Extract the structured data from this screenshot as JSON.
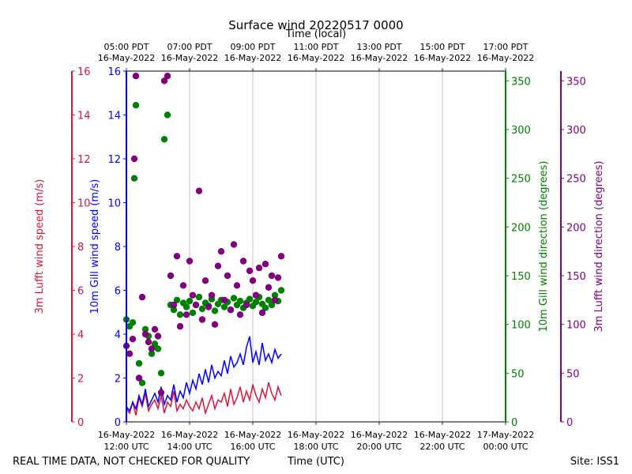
{
  "chart_data": {
    "type": "line",
    "title": "Surface wind 20220517 0000",
    "top_axis_label": "Time (local)",
    "xlabel": "Time (UTC)",
    "footer_left": "REAL TIME DATA, NOT CHECKED FOR QUALITY",
    "footer_right": "Site: ISS1",
    "x_range_hours_utc": [
      12,
      24
    ],
    "x_ticks_utc": [
      {
        "hour": 12,
        "line1": "16-May-2022",
        "line2": "12:00 UTC"
      },
      {
        "hour": 14,
        "line1": "16-May-2022",
        "line2": "14:00 UTC"
      },
      {
        "hour": 16,
        "line1": "16-May-2022",
        "line2": "16:00 UTC"
      },
      {
        "hour": 18,
        "line1": "16-May-2022",
        "line2": "18:00 UTC"
      },
      {
        "hour": 20,
        "line1": "16-May-2022",
        "line2": "20:00 UTC"
      },
      {
        "hour": 22,
        "line1": "16-May-2022",
        "line2": "22:00 UTC"
      },
      {
        "hour": 24,
        "line1": "17-May-2022",
        "line2": "00:00 UTC"
      }
    ],
    "x_ticks_local": [
      {
        "hour": 12,
        "line1": "05:00 PDT",
        "line2": "16-May-2022"
      },
      {
        "hour": 14,
        "line1": "07:00 PDT",
        "line2": "16-May-2022"
      },
      {
        "hour": 16,
        "line1": "09:00 PDT",
        "line2": "16-May-2022"
      },
      {
        "hour": 18,
        "line1": "11:00 PDT",
        "line2": "16-May-2022"
      },
      {
        "hour": 20,
        "line1": "13:00 PDT",
        "line2": "16-May-2022"
      },
      {
        "hour": 22,
        "line1": "15:00 PDT",
        "line2": "16-May-2022"
      },
      {
        "hour": 24,
        "line1": "17:00 PDT",
        "line2": "16-May-2022"
      }
    ],
    "axes": {
      "lufft_speed": {
        "label": "3m Lufft wind speed (m/s)",
        "ylim": [
          0,
          16
        ],
        "ticks": [
          0,
          2,
          4,
          6,
          8,
          10,
          12,
          14,
          16
        ],
        "color": "#dc143c"
      },
      "gill_speed": {
        "label": "10m Gill wind speed (m/s)",
        "ylim": [
          0,
          16
        ],
        "ticks": [
          0,
          2,
          4,
          6,
          8,
          10,
          12,
          14,
          16
        ],
        "color": "#0000ff"
      },
      "gill_dir": {
        "label": "10m Gill wind direction (degrees)",
        "ylim": [
          0,
          360
        ],
        "ticks": [
          0,
          50,
          100,
          150,
          200,
          250,
          300,
          350
        ],
        "color": "#008000"
      },
      "lufft_dir": {
        "label": "3m Lufft wind direction (degrees)",
        "ylim": [
          0,
          360
        ],
        "ticks": [
          0,
          50,
          100,
          150,
          200,
          250,
          300,
          350
        ],
        "color": "#800080"
      }
    },
    "series": [
      {
        "name": "3m Lufft wind speed",
        "kind": "line",
        "axis": "lufft_speed",
        "color": "#dc143c",
        "x": [
          12.0,
          12.1,
          12.2,
          12.3,
          12.4,
          12.5,
          12.6,
          12.7,
          12.8,
          12.9,
          13.0,
          13.1,
          13.2,
          13.3,
          13.4,
          13.5,
          13.6,
          13.7,
          13.8,
          13.9,
          14.0,
          14.1,
          14.2,
          14.3,
          14.4,
          14.5,
          14.6,
          14.7,
          14.8,
          14.9,
          15.0,
          15.1,
          15.2,
          15.3,
          15.4,
          15.5,
          15.6,
          15.7,
          15.8,
          15.9,
          16.0,
          16.1,
          16.2,
          16.3,
          16.4,
          16.5,
          16.6,
          16.7,
          16.8,
          16.9
        ],
        "values": [
          0.6,
          0.4,
          0.9,
          0.3,
          1.1,
          0.7,
          1.3,
          0.5,
          0.8,
          1.0,
          0.6,
          1.2,
          0.4,
          0.9,
          0.7,
          1.4,
          0.5,
          0.8,
          0.6,
          1.0,
          0.7,
          0.5,
          0.9,
          0.6,
          1.1,
          0.4,
          0.8,
          1.2,
          0.6,
          1.0,
          0.9,
          1.3,
          0.7,
          1.5,
          0.8,
          1.1,
          1.6,
          0.9,
          1.4,
          1.0,
          1.7,
          1.2,
          0.9,
          1.5,
          1.1,
          1.8,
          1.3,
          1.0,
          1.6,
          1.2
        ]
      },
      {
        "name": "10m Gill wind speed",
        "kind": "line",
        "axis": "gill_speed",
        "color": "#0000ff",
        "x": [
          12.0,
          12.1,
          12.2,
          12.3,
          12.4,
          12.5,
          12.6,
          12.7,
          12.8,
          12.9,
          13.0,
          13.1,
          13.2,
          13.3,
          13.4,
          13.5,
          13.6,
          13.7,
          13.8,
          13.9,
          14.0,
          14.1,
          14.2,
          14.3,
          14.4,
          14.5,
          14.6,
          14.7,
          14.8,
          14.9,
          15.0,
          15.1,
          15.2,
          15.3,
          15.4,
          15.5,
          15.6,
          15.7,
          15.8,
          15.9,
          16.0,
          16.1,
          16.2,
          16.3,
          16.4,
          16.5,
          16.6,
          16.7,
          16.8,
          16.9
        ],
        "values": [
          0.7,
          0.5,
          0.9,
          0.6,
          1.2,
          0.8,
          1.5,
          0.7,
          1.0,
          1.3,
          0.9,
          1.6,
          0.8,
          1.2,
          1.0,
          1.7,
          0.9,
          1.4,
          1.1,
          1.8,
          1.3,
          1.9,
          1.5,
          2.2,
          1.7,
          2.4,
          1.8,
          2.6,
          2.0,
          2.3,
          2.1,
          2.8,
          2.2,
          3.0,
          2.5,
          2.7,
          3.1,
          2.6,
          3.4,
          3.9,
          2.7,
          3.2,
          2.6,
          3.6,
          2.8,
          3.1,
          2.7,
          3.3,
          2.9,
          3.1
        ]
      },
      {
        "name": "10m Gill wind direction",
        "kind": "scatter",
        "axis": "gill_dir",
        "color": "#008000",
        "x": [
          12.0,
          12.1,
          12.2,
          12.25,
          12.3,
          12.4,
          12.5,
          12.6,
          12.7,
          12.8,
          12.9,
          13.0,
          13.1,
          13.2,
          13.3,
          13.4,
          13.5,
          13.6,
          13.7,
          13.8,
          13.9,
          14.0,
          14.1,
          14.2,
          14.3,
          14.4,
          14.5,
          14.6,
          14.7,
          14.8,
          14.9,
          15.0,
          15.1,
          15.2,
          15.3,
          15.4,
          15.5,
          15.6,
          15.7,
          15.8,
          15.9,
          16.0,
          16.1,
          16.2,
          16.3,
          16.4,
          16.5,
          16.6,
          16.7,
          16.8,
          16.9
        ],
        "values": [
          105,
          98,
          102,
          250,
          325,
          60,
          40,
          95,
          88,
          70,
          80,
          75,
          50,
          290,
          315,
          120,
          115,
          125,
          110,
          122,
          118,
          124,
          112,
          120,
          128,
          116,
          122,
          119,
          126,
          114,
          121,
          125,
          118,
          123,
          115,
          127,
          120,
          124,
          117,
          122,
          126,
          119,
          123,
          128,
          121,
          117,
          125,
          120,
          130,
          124,
          135
        ]
      },
      {
        "name": "3m Lufft wind direction",
        "kind": "scatter",
        "axis": "lufft_dir",
        "color": "#800080",
        "x": [
          12.0,
          12.1,
          12.2,
          12.25,
          12.3,
          12.4,
          12.5,
          12.6,
          12.7,
          12.8,
          12.9,
          13.0,
          13.1,
          13.2,
          13.3,
          13.4,
          13.5,
          13.6,
          13.7,
          13.8,
          13.9,
          14.0,
          14.1,
          14.2,
          14.3,
          14.4,
          14.5,
          14.6,
          14.7,
          14.8,
          14.9,
          15.0,
          15.1,
          15.2,
          15.3,
          15.4,
          15.5,
          15.6,
          15.7,
          15.8,
          15.9,
          16.0,
          16.1,
          16.2,
          16.3,
          16.4,
          16.5,
          16.6,
          16.7,
          16.8,
          16.9
        ],
        "values": [
          78,
          70,
          85,
          270,
          355,
          45,
          128,
          90,
          82,
          75,
          95,
          88,
          30,
          350,
          355,
          150,
          120,
          170,
          98,
          140,
          110,
          165,
          130,
          120,
          237,
          105,
          145,
          118,
          130,
          100,
          160,
          175,
          125,
          150,
          115,
          182,
          140,
          110,
          165,
          120,
          155,
          145,
          130,
          158,
          112,
          162,
          138,
          150,
          125,
          148,
          170
        ]
      }
    ]
  }
}
